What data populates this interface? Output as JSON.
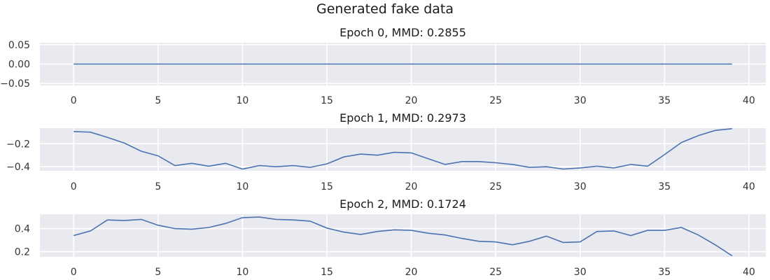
{
  "figure": {
    "suptitle": "Generated fake data"
  },
  "style": {
    "background": "#e9e9f0",
    "line_color": "#4c72b0"
  },
  "chart_data": [
    {
      "type": "line",
      "title": "Epoch 0, MMD: 0.2855",
      "xlabel": "",
      "ylabel": "",
      "xlim": [
        -2,
        41
      ],
      "ylim": [
        -0.055,
        0.055
      ],
      "xticks": [
        0,
        5,
        10,
        15,
        20,
        25,
        30,
        35,
        40
      ],
      "yticks": [
        0.05,
        0.0,
        -0.05
      ],
      "ytick_labels": [
        "0.05",
        "0.00",
        "−0.05"
      ],
      "grid": true,
      "x": [
        0,
        1,
        2,
        3,
        4,
        5,
        6,
        7,
        8,
        9,
        10,
        11,
        12,
        13,
        14,
        15,
        16,
        17,
        18,
        19,
        20,
        21,
        22,
        23,
        24,
        25,
        26,
        27,
        28,
        29,
        30,
        31,
        32,
        33,
        34,
        35,
        36,
        37,
        38,
        39
      ],
      "values": [
        0,
        0,
        0,
        0,
        0,
        0,
        0,
        0,
        0,
        0,
        0,
        0,
        0,
        0,
        0,
        0,
        0,
        0,
        0,
        0,
        0,
        0,
        0,
        0,
        0,
        0,
        0,
        0,
        0,
        0,
        0,
        0,
        0,
        0,
        0,
        0,
        0,
        0,
        0,
        0
      ]
    },
    {
      "type": "line",
      "title": "Epoch 1, MMD: 0.2973",
      "xlabel": "",
      "ylabel": "",
      "xlim": [
        -2,
        41
      ],
      "ylim": [
        -0.435,
        -0.065
      ],
      "xticks": [
        0,
        5,
        10,
        15,
        20,
        25,
        30,
        35,
        40
      ],
      "yticks": [
        -0.2,
        -0.4
      ],
      "ytick_labels": [
        "−0.2",
        "−0.4"
      ],
      "grid": true,
      "x": [
        0,
        1,
        2,
        3,
        4,
        5,
        6,
        7,
        8,
        9,
        10,
        11,
        12,
        13,
        14,
        15,
        16,
        17,
        18,
        19,
        20,
        21,
        22,
        23,
        24,
        25,
        26,
        27,
        28,
        29,
        30,
        31,
        32,
        33,
        34,
        35,
        36,
        37,
        38,
        39
      ],
      "values": [
        -0.095,
        -0.1,
        -0.145,
        -0.195,
        -0.265,
        -0.305,
        -0.39,
        -0.37,
        -0.395,
        -0.37,
        -0.42,
        -0.39,
        -0.4,
        -0.39,
        -0.405,
        -0.375,
        -0.315,
        -0.29,
        -0.3,
        -0.275,
        -0.28,
        -0.33,
        -0.38,
        -0.355,
        -0.355,
        -0.365,
        -0.38,
        -0.405,
        -0.4,
        -0.42,
        -0.41,
        -0.395,
        -0.41,
        -0.38,
        -0.395,
        -0.295,
        -0.19,
        -0.13,
        -0.085,
        -0.07
      ]
    },
    {
      "type": "line",
      "title": "Epoch 2, MMD: 0.1724",
      "xlabel": "",
      "ylabel": "",
      "xlim": [
        -2,
        41
      ],
      "ylim": [
        0.155,
        0.525
      ],
      "xticks": [
        0,
        5,
        10,
        15,
        20,
        25,
        30,
        35,
        40
      ],
      "yticks": [
        0.4,
        0.2
      ],
      "ytick_labels": [
        "0.4",
        "0.2"
      ],
      "grid": true,
      "x": [
        0,
        1,
        2,
        3,
        4,
        5,
        6,
        7,
        8,
        9,
        10,
        11,
        12,
        13,
        14,
        15,
        16,
        17,
        18,
        19,
        20,
        21,
        22,
        23,
        24,
        25,
        26,
        27,
        28,
        29,
        30,
        31,
        32,
        33,
        34,
        35,
        36,
        37,
        38,
        39
      ],
      "values": [
        0.34,
        0.38,
        0.475,
        0.47,
        0.48,
        0.43,
        0.4,
        0.395,
        0.41,
        0.445,
        0.495,
        0.5,
        0.48,
        0.475,
        0.465,
        0.405,
        0.37,
        0.35,
        0.375,
        0.39,
        0.385,
        0.36,
        0.345,
        0.315,
        0.29,
        0.285,
        0.26,
        0.29,
        0.335,
        0.28,
        0.285,
        0.375,
        0.38,
        0.34,
        0.385,
        0.385,
        0.41,
        0.345,
        0.26,
        0.165
      ]
    }
  ]
}
